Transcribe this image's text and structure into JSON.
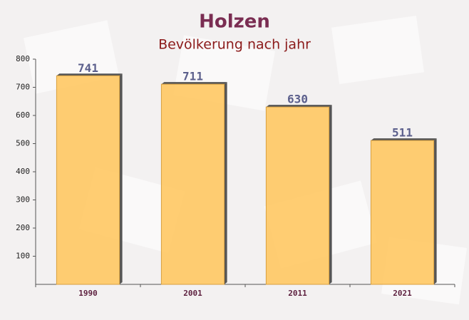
{
  "chart_data": {
    "type": "bar",
    "title": "Holzen",
    "subtitle": "Bevölkerung nach jahr",
    "categories": [
      "1990",
      "2001",
      "2011",
      "2021"
    ],
    "values": [
      741,
      711,
      630,
      511
    ],
    "color": "#ffc55a",
    "ylim": [
      0,
      800
    ],
    "yticks": [
      100,
      200,
      300,
      400,
      500,
      600,
      700,
      800
    ]
  }
}
